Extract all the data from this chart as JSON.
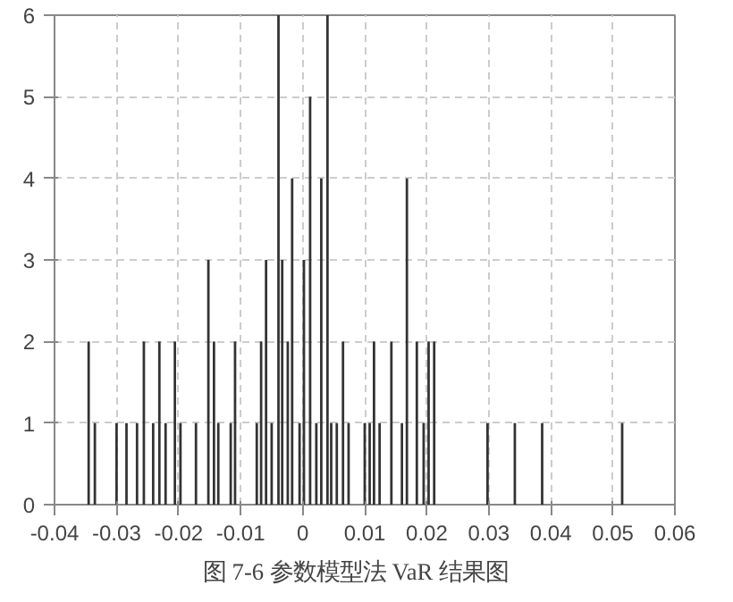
{
  "chart_data": {
    "type": "bar",
    "color": "#333333",
    "x": [
      -0.0345,
      -0.0335,
      -0.03,
      -0.0284,
      -0.0267,
      -0.0256,
      -0.0241,
      -0.0231,
      -0.0221,
      -0.0206,
      -0.0197,
      -0.0172,
      -0.0152,
      -0.0143,
      -0.0136,
      -0.0116,
      -0.0109,
      -0.0074,
      -0.0067,
      -0.0059,
      -0.005,
      -0.0039,
      -0.0033,
      -0.0024,
      -0.0017,
      -0.0005,
      0.0002,
      0.0012,
      0.0022,
      0.003,
      0.004,
      0.0046,
      0.0055,
      0.0065,
      0.0074,
      0.01,
      0.0108,
      0.0115,
      0.0124,
      0.0143,
      0.016,
      0.0168,
      0.0184,
      0.0195,
      0.0203,
      0.0212,
      0.0298,
      0.0342,
      0.0386,
      0.0515
    ],
    "values": [
      2,
      1,
      1,
      1,
      1,
      2,
      1,
      2,
      1,
      2,
      1,
      1,
      3,
      2,
      1,
      1,
      2,
      1,
      2,
      3,
      1,
      6,
      3,
      2,
      4,
      1,
      3,
      5,
      1,
      4,
      6,
      1,
      1,
      2,
      1,
      1,
      1,
      2,
      1,
      2,
      1,
      4,
      2,
      1,
      2,
      2,
      1,
      1,
      1,
      1
    ],
    "xlim": [
      -0.04,
      0.06
    ],
    "xticks": [
      -0.04,
      -0.03,
      -0.02,
      -0.01,
      0,
      0.01,
      0.02,
      0.03,
      0.04,
      0.05,
      0.06
    ],
    "ylim": [
      0,
      6
    ],
    "yticks": [
      0,
      1,
      2,
      3,
      4,
      5,
      6
    ],
    "grid": true,
    "annotations": [
      "图 7-6    参数模型法 VaR 结果图"
    ]
  }
}
